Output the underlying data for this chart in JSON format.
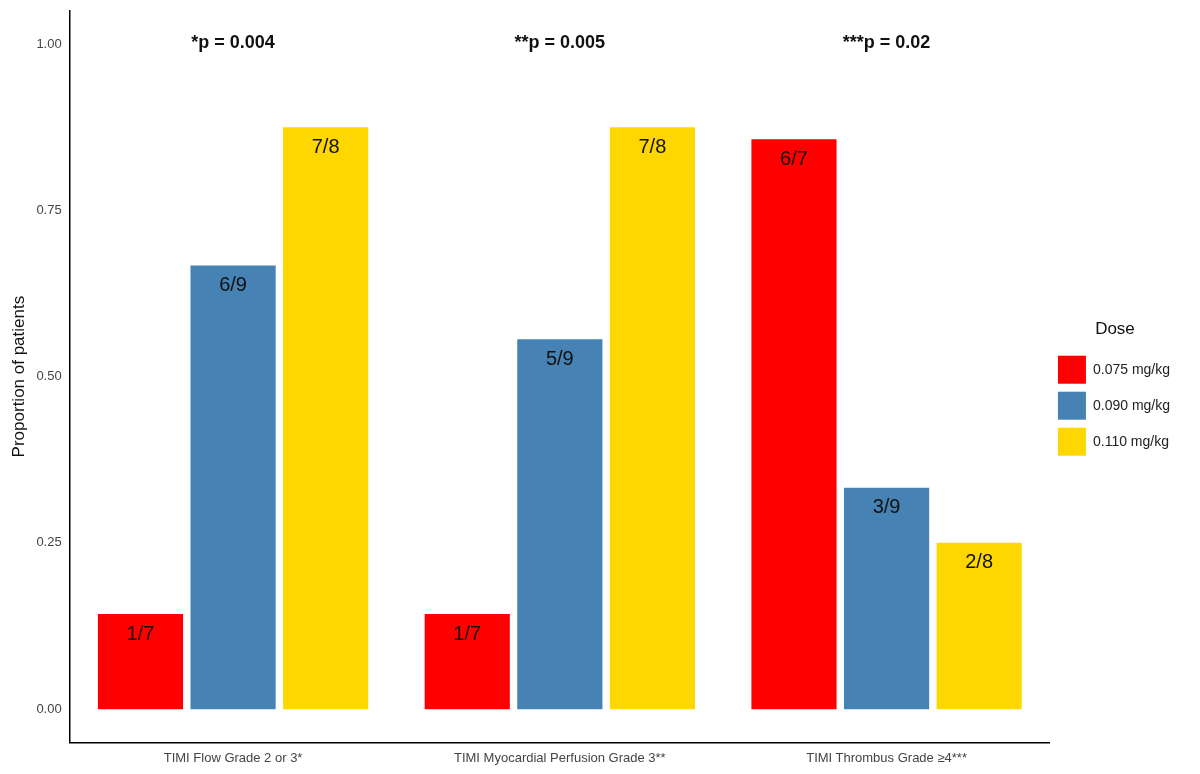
{
  "chart_data": {
    "type": "bar",
    "ylabel": "Proportion of patients",
    "legend_title": "Dose",
    "legend": "right",
    "grid": false,
    "categories": [
      "TIMI Flow Grade 2 or 3*",
      "TIMI Myocardial Perfusion Grade 3**",
      "TIMI Thrombus Grade ≥4***"
    ],
    "series": [
      {
        "name": "0.075 mg/kg",
        "color": "#ff0000",
        "values": [
          0.143,
          0.143,
          0.857
        ],
        "value_labels": [
          "1/7",
          "1/7",
          "6/7"
        ]
      },
      {
        "name": "0.090 mg/kg",
        "color": "#4682b4",
        "values": [
          0.667,
          0.556,
          0.333
        ],
        "value_labels": [
          "6/9",
          "5/9",
          "3/9"
        ]
      },
      {
        "name": "0.110 mg/kg",
        "color": "#ffd700",
        "values": [
          0.875,
          0.875,
          0.25
        ],
        "value_labels": [
          "7/8",
          "7/8",
          "2/8"
        ]
      }
    ],
    "ylim": [
      -0.05,
      1.05
    ],
    "yticks": [
      {
        "value": 0,
        "label": "0.00"
      },
      {
        "value": 0.25,
        "label": "0.25"
      },
      {
        "value": 0.5,
        "label": "0.50"
      },
      {
        "value": 0.75,
        "label": "0.75"
      },
      {
        "value": 1,
        "label": "1.00"
      }
    ],
    "annotations": [
      "*p = 0.004",
      "**p = 0.005",
      "***p = 0.02"
    ]
  }
}
